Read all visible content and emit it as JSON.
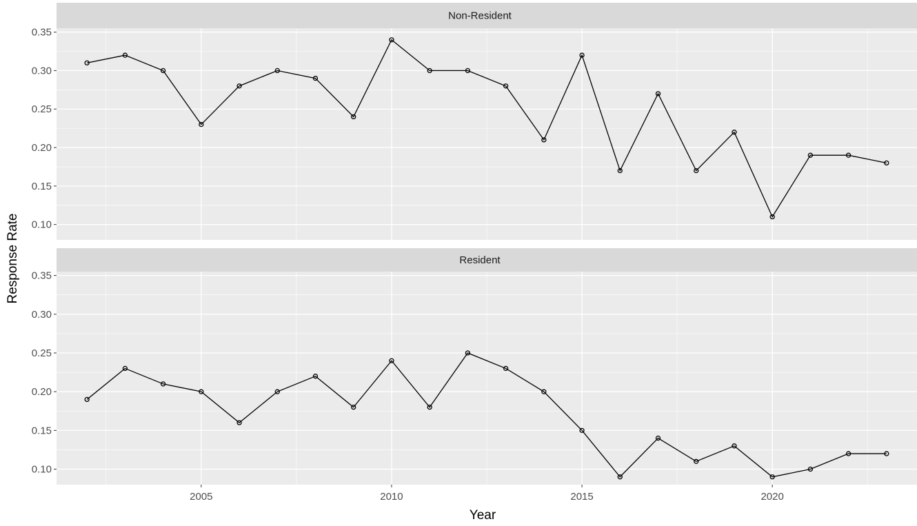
{
  "chart_data": {
    "type": "line",
    "xlabel": "Year",
    "ylabel": "Response Rate",
    "xlim": [
      2001.2,
      2023.8
    ],
    "ylim": [
      0.08,
      0.355
    ],
    "x_ticks": [
      2005,
      2010,
      2015,
      2020
    ],
    "y_ticks": [
      0.1,
      0.15,
      0.2,
      0.25,
      0.3,
      0.35
    ],
    "x": [
      2002,
      2003,
      2004,
      2005,
      2006,
      2007,
      2008,
      2009,
      2010,
      2011,
      2012,
      2013,
      2014,
      2015,
      2016,
      2017,
      2018,
      2019,
      2020,
      2021,
      2022,
      2023
    ],
    "grid": true,
    "line_color": "#000000",
    "panel_background": "#ebebeb",
    "strip_background": "#d9d9d9",
    "facets": [
      {
        "label": "Non-Resident",
        "values": [
          0.31,
          0.32,
          0.3,
          0.23,
          0.28,
          0.3,
          0.29,
          0.24,
          0.34,
          0.3,
          0.3,
          0.28,
          0.21,
          0.32,
          0.17,
          0.27,
          0.17,
          0.22,
          0.11,
          0.19,
          0.19,
          0.18
        ]
      },
      {
        "label": "Resident",
        "values": [
          0.19,
          0.23,
          0.21,
          0.2,
          0.16,
          0.2,
          0.22,
          0.18,
          0.24,
          0.18,
          0.25,
          0.23,
          0.2,
          0.15,
          0.09,
          0.14,
          0.11,
          0.13,
          0.09,
          0.1,
          0.12,
          0.12
        ]
      }
    ]
  }
}
